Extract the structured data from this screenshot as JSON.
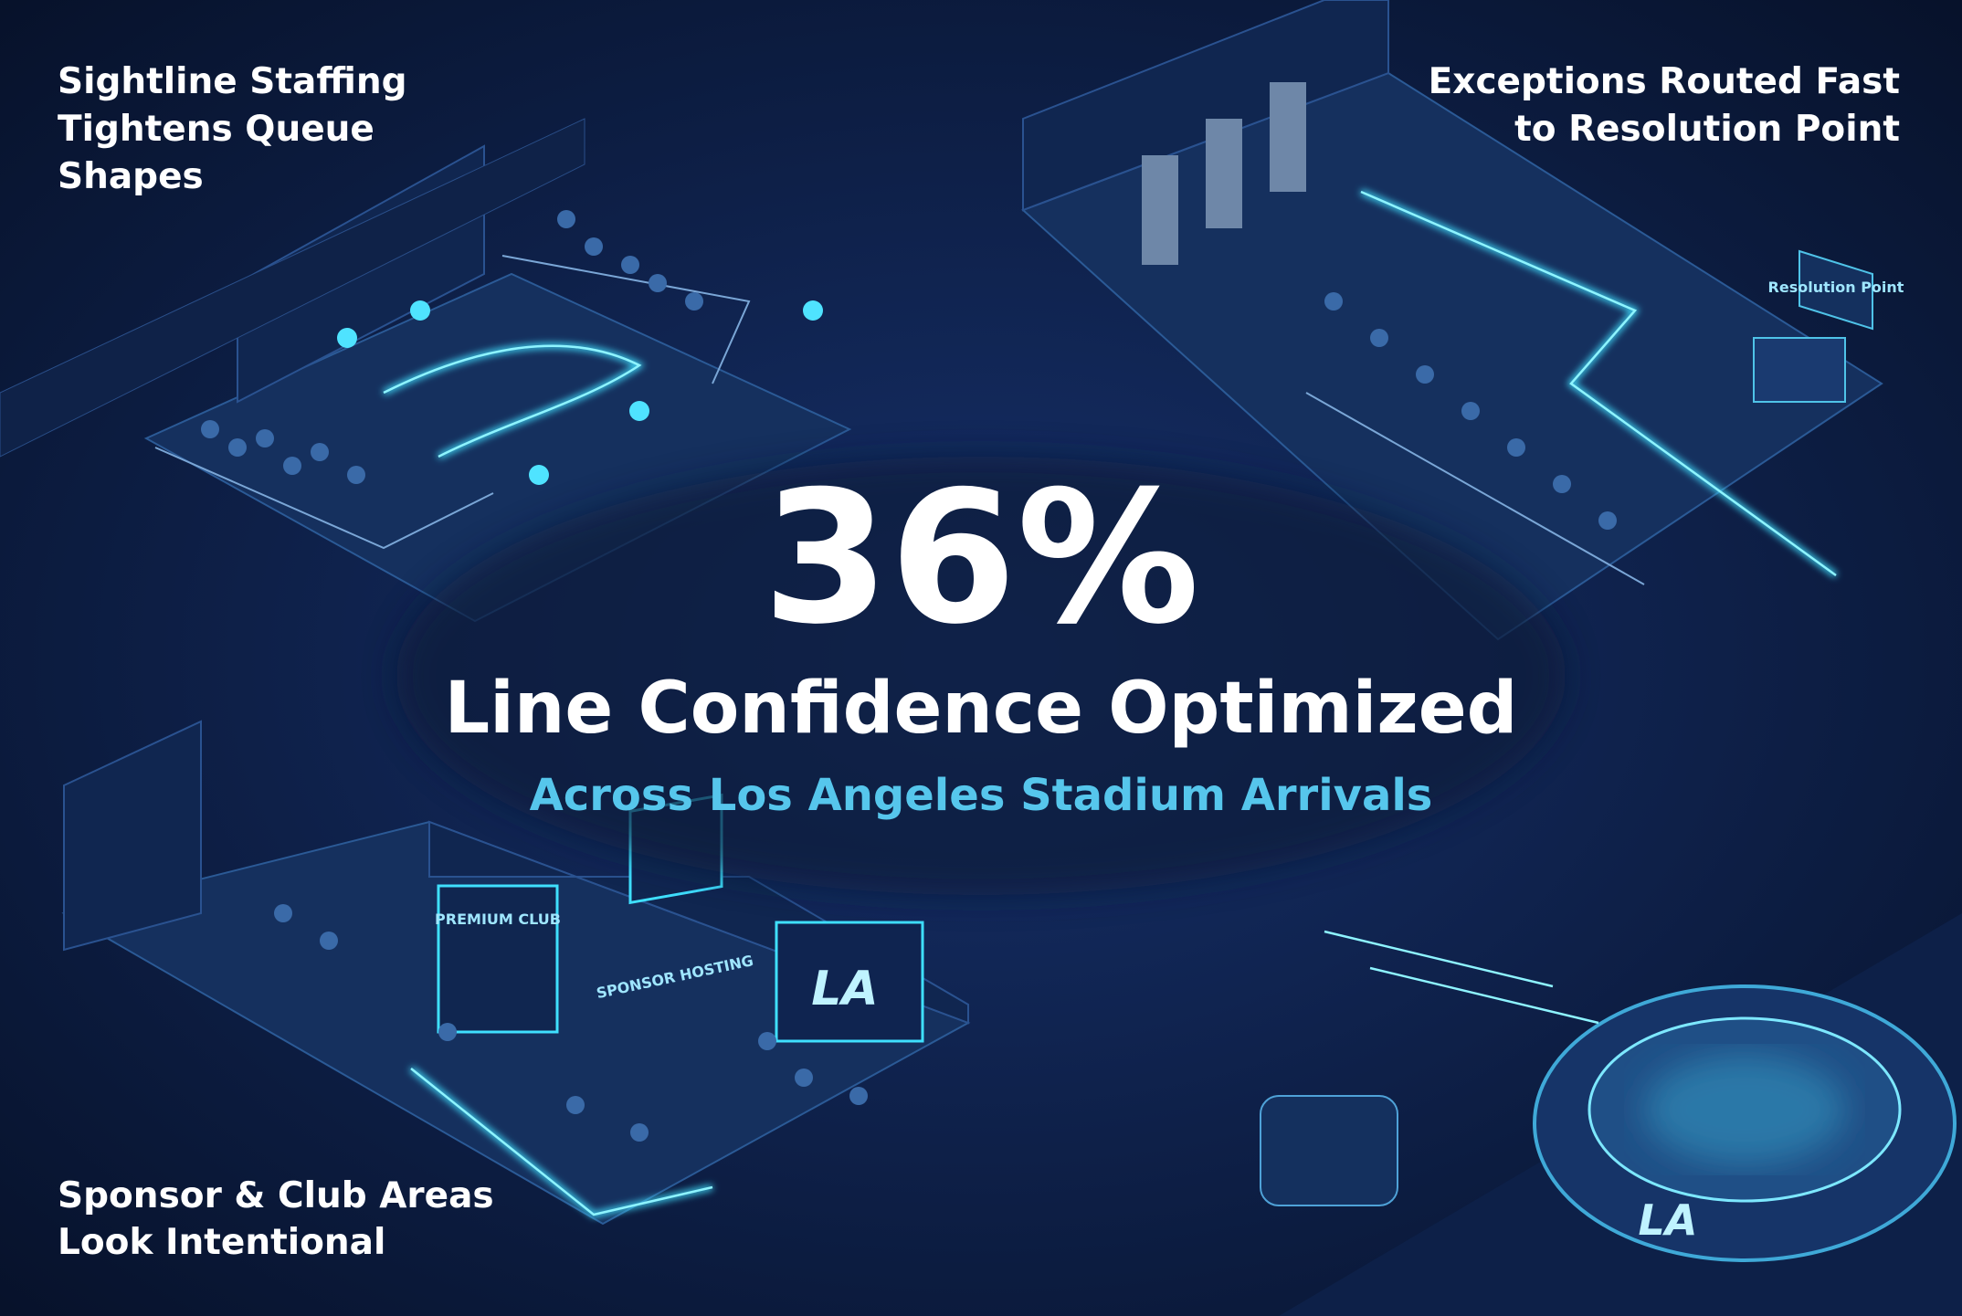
{
  "headline": {
    "figure": "36%",
    "title": "Line Confidence Optimized",
    "subtitle": "Across Los Angeles Stadium Arrivals"
  },
  "panels": [
    {
      "lines": [
        "Sightline Staffing",
        "Tightens Queue",
        "Shapes"
      ]
    },
    {
      "lines": [
        "Exceptions Routed Fast",
        "to Resolution Point"
      ]
    },
    {
      "lines": [
        "Sponsor & Club Areas",
        "Look Intentional"
      ]
    }
  ],
  "scene_labels": [
    "Resolution Point",
    "PREMIUM CLUB",
    "SPONSOR HOSTING",
    "LA",
    "LA"
  ]
}
